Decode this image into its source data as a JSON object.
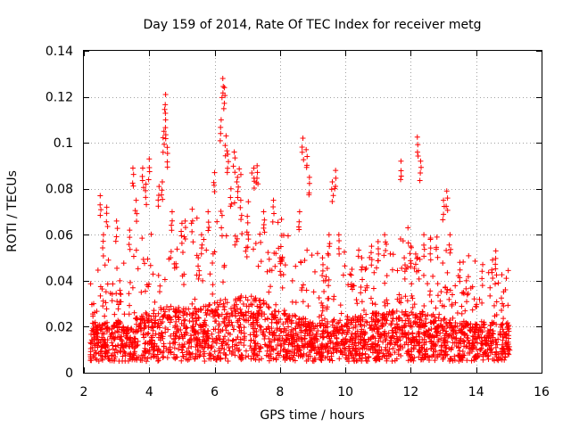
{
  "chart_data": {
    "type": "scatter",
    "title": "Day 159 of 2014, Rate Of TEC Index for receiver metg",
    "xlabel": "GPS time / hours",
    "ylabel": "ROTI / TECUs",
    "xlim": [
      2,
      16
    ],
    "ylim": [
      0,
      0.14
    ],
    "xticks": [
      2,
      4,
      6,
      8,
      10,
      12,
      14,
      16
    ],
    "yticks": [
      0,
      0.02,
      0.04,
      0.06,
      0.08,
      0.1,
      0.12,
      0.14
    ],
    "xtick_labels": [
      "2",
      "4",
      "6",
      "8",
      "10",
      "12",
      "14",
      "16"
    ],
    "ytick_labels": [
      "0",
      "0.02",
      "0.04",
      "0.06",
      "0.08",
      "0.1",
      "0.12",
      "0.14"
    ],
    "grid": true,
    "marker": "+",
    "color": "#ff0000",
    "x_data_range": [
      2.2,
      15.0
    ],
    "typical_band": [
      0.005,
      0.03
    ],
    "series": [
      {
        "name": "ROTI",
        "x": [
          2.3,
          2.5,
          2.6,
          2.7,
          3.0,
          3.1,
          3.4,
          3.5,
          3.6,
          3.8,
          3.9,
          4.0,
          4.3,
          4.4,
          4.45,
          4.5,
          4.5,
          4.55,
          4.7,
          5.0,
          5.1,
          5.5,
          5.6,
          5.8,
          6.0,
          6.2,
          6.25,
          6.3,
          6.35,
          6.4,
          6.5,
          6.6,
          6.7,
          6.8,
          7.0,
          7.2,
          7.3,
          7.5,
          7.8,
          8.0,
          8.6,
          8.7,
          8.8,
          8.9,
          9.3,
          9.5,
          9.6,
          9.7,
          9.8,
          10.2,
          10.5,
          10.8,
          11.0,
          11.2,
          11.7,
          11.8,
          12.0,
          12.2,
          12.3,
          12.4,
          12.6,
          12.8,
          13.0,
          13.1,
          13.2,
          13.5,
          13.7,
          14.2,
          14.5,
          14.6,
          14.8,
          15.0
        ],
        "y": [
          0.03,
          0.077,
          0.06,
          0.072,
          0.066,
          0.04,
          0.062,
          0.089,
          0.075,
          0.089,
          0.082,
          0.093,
          0.081,
          0.083,
          0.105,
          0.121,
          0.11,
          0.098,
          0.07,
          0.065,
          0.066,
          0.05,
          0.06,
          0.07,
          0.087,
          0.11,
          0.128,
          0.124,
          0.103,
          0.095,
          0.08,
          0.096,
          0.085,
          0.075,
          0.068,
          0.089,
          0.09,
          0.07,
          0.075,
          0.05,
          0.07,
          0.102,
          0.097,
          0.085,
          0.05,
          0.06,
          0.083,
          0.088,
          0.06,
          0.045,
          0.05,
          0.055,
          0.057,
          0.06,
          0.092,
          0.05,
          0.055,
          0.1025,
          0.092,
          0.06,
          0.058,
          0.059,
          0.075,
          0.079,
          0.06,
          0.048,
          0.04,
          0.047,
          0.049,
          0.053,
          0.03,
          0.018
        ]
      }
    ]
  }
}
